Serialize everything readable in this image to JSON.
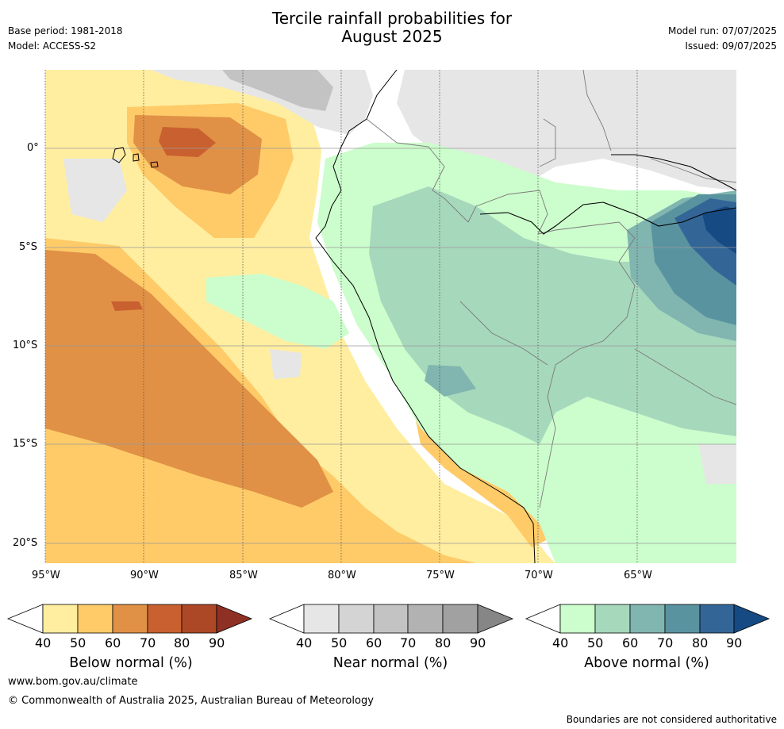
{
  "header": {
    "title_line1": "Tercile rainfall probabilities for",
    "title_line2": "August 2025",
    "base_period": "Base period: 1981-2018",
    "model": "Model: ACCESS-S2",
    "model_run": "Model run: 07/07/2025",
    "issued": "Issued: 09/07/2025"
  },
  "map": {
    "lon_ticks": [
      "95°W",
      "90°W",
      "85°W",
      "80°W",
      "75°W",
      "70°W",
      "65°W"
    ],
    "lat_ticks": [
      "0°",
      "5°S",
      "10°S",
      "15°S",
      "20°S"
    ],
    "colors": {
      "below": [
        "#ffeea0",
        "#fecb68",
        "#e09146",
        "#c9602f",
        "#ad4826",
        "#8e3124"
      ],
      "near": [
        "#e6e6e6",
        "#d4d4d4",
        "#c3c3c3",
        "#b2b2b2",
        "#a1a1a1",
        "#868686"
      ],
      "above": [
        "#ccfdcc",
        "#a6d8bc",
        "#80b5b0",
        "#5a93a0",
        "#336697",
        "#164a83"
      ]
    }
  },
  "colorbars": [
    {
      "title": "Below normal (%)",
      "labels": [
        "40",
        "50",
        "60",
        "70",
        "80",
        "90"
      ]
    },
    {
      "title": "Near normal (%)",
      "labels": [
        "40",
        "50",
        "60",
        "70",
        "80",
        "90"
      ]
    },
    {
      "title": "Above normal (%)",
      "labels": [
        "40",
        "50",
        "60",
        "70",
        "80",
        "90"
      ]
    }
  ],
  "footer": {
    "website": "www.bom.gov.au/climate",
    "copyright": "© Commonwealth of Australia 2025, Australian Bureau of Meteorology",
    "disclaimer": "Boundaries are not considered authoritative"
  }
}
